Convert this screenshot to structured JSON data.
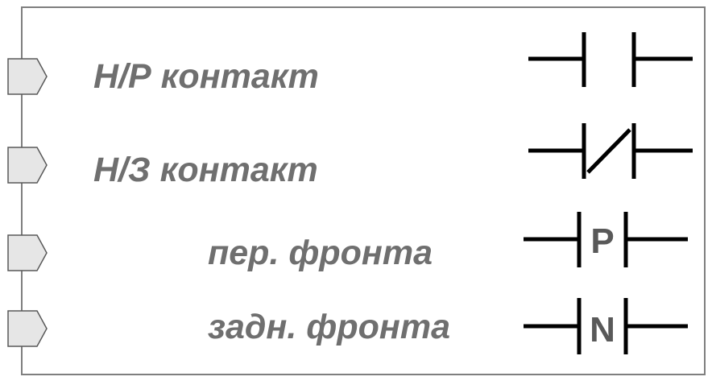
{
  "block": {
    "border_color": "#7f7f7f",
    "pin_fill": "#e6e6e6",
    "pin_stroke": "#595959"
  },
  "rows": [
    {
      "label": "Н/Р контакт",
      "symbol": "no-contact-symbol"
    },
    {
      "label": "Н/З контакт",
      "symbol": "nc-contact-symbol"
    },
    {
      "label": "пер. фронта",
      "symbol": "rising-edge-contact-symbol",
      "symbol_letter": "P"
    },
    {
      "label": "задн. фронта",
      "symbol": "falling-edge-contact-symbol",
      "symbol_letter": "N"
    }
  ],
  "colors": {
    "label_text": "#6f6f6f",
    "symbol_line": "#000000",
    "symbol_letter": "#595959"
  }
}
